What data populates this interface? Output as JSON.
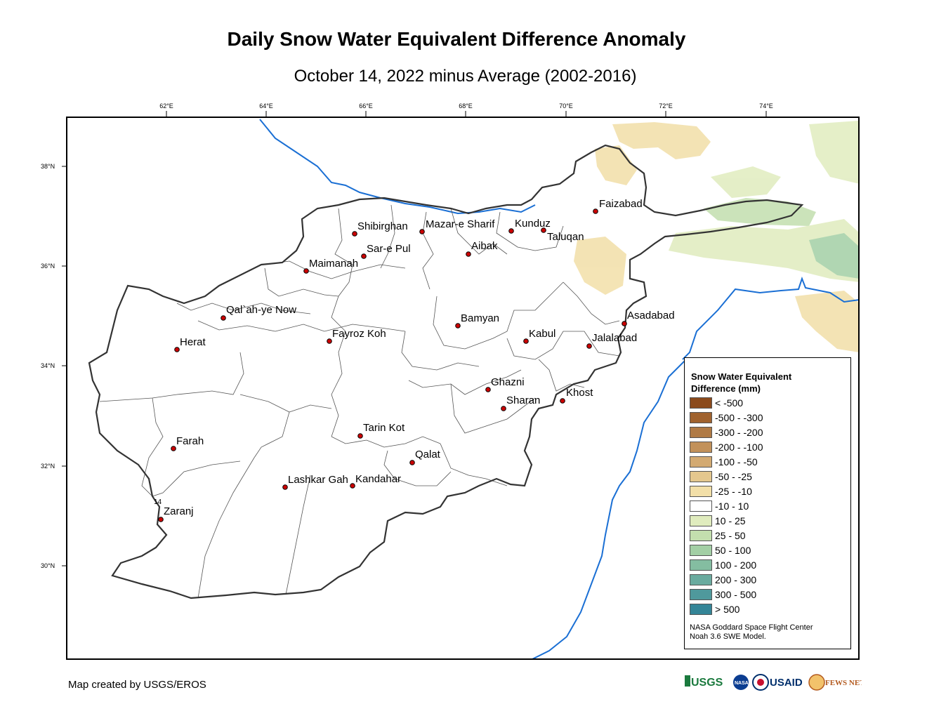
{
  "title": "Daily Snow Water Equivalent Difference Anomaly",
  "subtitle": "October 14, 2022 minus Average (2002-2016)",
  "longitude_ticks": [
    "62°E",
    "64°E",
    "66°E",
    "68°E",
    "70°E",
    "72°E",
    "74°E"
  ],
  "latitude_ticks": [
    "38°N",
    "36°N",
    "34°N",
    "32°N",
    "30°N"
  ],
  "cities": [
    {
      "name": "Faizabad"
    },
    {
      "name": "Shibirghan"
    },
    {
      "name": "Mazar-e Sharif"
    },
    {
      "name": "Kunduz"
    },
    {
      "name": "Taluqan"
    },
    {
      "name": "Sar-e Pul"
    },
    {
      "name": "Aibak"
    },
    {
      "name": "Maimanah"
    },
    {
      "name": "Qal`ah-ye Now"
    },
    {
      "name": "Asadabad"
    },
    {
      "name": "Bamyan"
    },
    {
      "name": "Herat"
    },
    {
      "name": "Fayroz Koh"
    },
    {
      "name": "Kabul"
    },
    {
      "name": "Jalalabad"
    },
    {
      "name": "Ghazni"
    },
    {
      "name": "Khost"
    },
    {
      "name": "Sharan"
    },
    {
      "name": "Tarin Kot"
    },
    {
      "name": "Farah"
    },
    {
      "name": "Qalat"
    },
    {
      "name": "Lashkar Gah"
    },
    {
      "name": "Kandahar"
    },
    {
      "name": "Zaranj"
    }
  ],
  "stray_label": "14",
  "legend": {
    "title_line1": "Snow Water Equivalent",
    "title_line2": "Difference (mm)",
    "items": [
      {
        "label": "< -500",
        "color": "#8b4a1c"
      },
      {
        "label": "-500 - -300",
        "color": "#a0622e"
      },
      {
        "label": "-300 - -200",
        "color": "#b07a45"
      },
      {
        "label": "-200 - -100",
        "color": "#c2915a"
      },
      {
        "label": "-100 - -50",
        "color": "#d3aa72"
      },
      {
        "label": "-50 - -25",
        "color": "#e4c78e"
      },
      {
        "label": "-25 - -10",
        "color": "#f2dfa8"
      },
      {
        "label": "-10 - 10",
        "color": "#ffffff"
      },
      {
        "label": "10 - 25",
        "color": "#e0ecbe"
      },
      {
        "label": "25 - 50",
        "color": "#c3dfae"
      },
      {
        "label": "50 - 100",
        "color": "#a3cfa5"
      },
      {
        "label": "100 - 200",
        "color": "#84bda1"
      },
      {
        "label": "200 - 300",
        "color": "#6aab9f"
      },
      {
        "label": "300 - 500",
        "color": "#4f999c"
      },
      {
        "label": "> 500",
        "color": "#348597"
      }
    ],
    "credit_line1": "NASA Goddard Space Flight Center",
    "credit_line2": "Noah 3.6 SWE Model."
  },
  "credit": "Map created by USGS/EROS",
  "logos": [
    "USGS",
    "NASA",
    "USAID",
    "FEWS NET"
  ],
  "colors": {
    "boundary": "#333333",
    "river": "#1a6fd4",
    "city_dot": "#cc0000"
  }
}
